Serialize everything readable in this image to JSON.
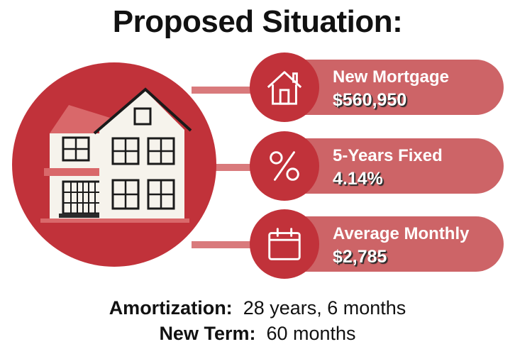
{
  "title": "Proposed Situation:",
  "colors": {
    "accent": "#c1323a",
    "pill": "#cd6467",
    "connector": "#d97a7c"
  },
  "cards": [
    {
      "icon": "house-icon",
      "label": "New Mortgage",
      "value": "$560,950"
    },
    {
      "icon": "percent-icon",
      "label": "5-Years Fixed",
      "value": "4.14%"
    },
    {
      "icon": "calendar-icon",
      "label": "Average Monthly",
      "value": "$2,785"
    }
  ],
  "details": {
    "amortization": {
      "label": "Amortization:",
      "value": "28 years, 6 months"
    },
    "new_term": {
      "label": "New Term:",
      "value": "60 months"
    }
  }
}
